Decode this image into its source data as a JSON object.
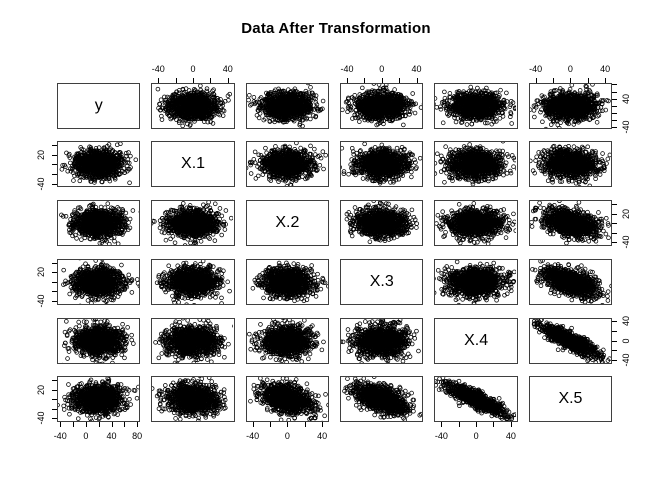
{
  "title": "Data After Transformation",
  "colors": {
    "background": "#ffffff",
    "points": "#000000",
    "text": "#000000",
    "panel_border": "#3f3f3f"
  },
  "chart_data": {
    "type": "scatter",
    "subtype": "pairs-matrix",
    "title": "Data After Transformation",
    "variables": [
      "y",
      "X.1",
      "X.2",
      "X.3",
      "X.4",
      "X.5"
    ],
    "marker": "open-circle",
    "marker_color": "#000000",
    "points_per_panel": 1100,
    "axis_ranges": [
      [
        -45,
        85
      ],
      [
        -48,
        48
      ],
      [
        -48,
        48
      ],
      [
        -48,
        48
      ],
      [
        -48,
        48
      ],
      [
        -48,
        48
      ]
    ],
    "means": [
      20,
      0,
      0,
      0,
      0,
      0
    ],
    "sds": [
      20,
      15,
      15,
      15,
      16,
      16
    ],
    "correlations": [
      [
        1,
        0,
        0,
        0,
        0,
        0
      ],
      [
        0,
        1,
        0,
        0,
        0,
        -0.1
      ],
      [
        0,
        0,
        1,
        0,
        0,
        -0.4
      ],
      [
        0,
        0,
        0,
        1,
        0,
        -0.5
      ],
      [
        0,
        0,
        0,
        0,
        1,
        -0.85
      ],
      [
        0,
        -0.1,
        -0.4,
        -0.5,
        -0.85,
        1
      ]
    ],
    "axes": {
      "top": [
        {
          "col": 1,
          "ticks": [
            -40,
            -20,
            0,
            20,
            40
          ],
          "labels": [
            [
              -40,
              "-40"
            ],
            [
              0,
              "0"
            ],
            [
              40,
              "40"
            ]
          ]
        },
        {
          "col": 3,
          "ticks": [
            -40,
            -20,
            0,
            20,
            40
          ],
          "labels": [
            [
              -40,
              "-40"
            ],
            [
              0,
              "0"
            ],
            [
              40,
              "40"
            ]
          ]
        },
        {
          "col": 5,
          "ticks": [
            -40,
            -20,
            0,
            20,
            40
          ],
          "labels": [
            [
              -40,
              "-40"
            ],
            [
              0,
              "0"
            ],
            [
              40,
              "40"
            ]
          ]
        }
      ],
      "bottom": [
        {
          "col": 0,
          "ticks": [
            -40,
            -20,
            0,
            20,
            40,
            60,
            80
          ],
          "labels": [
            [
              -40,
              "-40"
            ],
            [
              0,
              "0"
            ],
            [
              40,
              "40"
            ],
            [
              80,
              "80"
            ]
          ]
        },
        {
          "col": 2,
          "ticks": [
            -40,
            -20,
            0,
            20,
            40
          ],
          "labels": [
            [
              -40,
              "-40"
            ],
            [
              0,
              "0"
            ],
            [
              40,
              "40"
            ]
          ]
        },
        {
          "col": 4,
          "ticks": [
            -40,
            -20,
            0,
            20,
            40
          ],
          "labels": [
            [
              -40,
              "-40"
            ],
            [
              0,
              "0"
            ],
            [
              40,
              "40"
            ]
          ]
        }
      ],
      "left": [
        {
          "row": 1,
          "ticks": [
            -40,
            -20,
            0,
            20,
            40
          ],
          "labels": [
            [
              20,
              "20"
            ],
            [
              -40,
              "-40"
            ]
          ]
        },
        {
          "row": 3,
          "ticks": [
            -40,
            -20,
            0,
            20,
            40
          ],
          "labels": [
            [
              20,
              "20"
            ],
            [
              -40,
              "-40"
            ]
          ]
        },
        {
          "row": 5,
          "ticks": [
            -40,
            -20,
            0,
            20,
            40
          ],
          "labels": [
            [
              20,
              "20"
            ],
            [
              -40,
              "-40"
            ]
          ]
        }
      ],
      "right": [
        {
          "row": 0,
          "ticks": [
            -40,
            -20,
            0,
            20,
            40,
            60,
            80
          ],
          "labels": [
            [
              40,
              "40"
            ],
            [
              -40,
              "-40"
            ]
          ]
        },
        {
          "row": 2,
          "ticks": [
            -40,
            -20,
            0,
            20,
            40
          ],
          "labels": [
            [
              20,
              "20"
            ],
            [
              -40,
              "-40"
            ]
          ]
        },
        {
          "row": 4,
          "ticks": [
            -40,
            -20,
            0,
            20,
            40
          ],
          "labels": [
            [
              40,
              "40"
            ],
            [
              0,
              "0"
            ],
            [
              -40,
              "-40"
            ]
          ]
        }
      ]
    }
  }
}
